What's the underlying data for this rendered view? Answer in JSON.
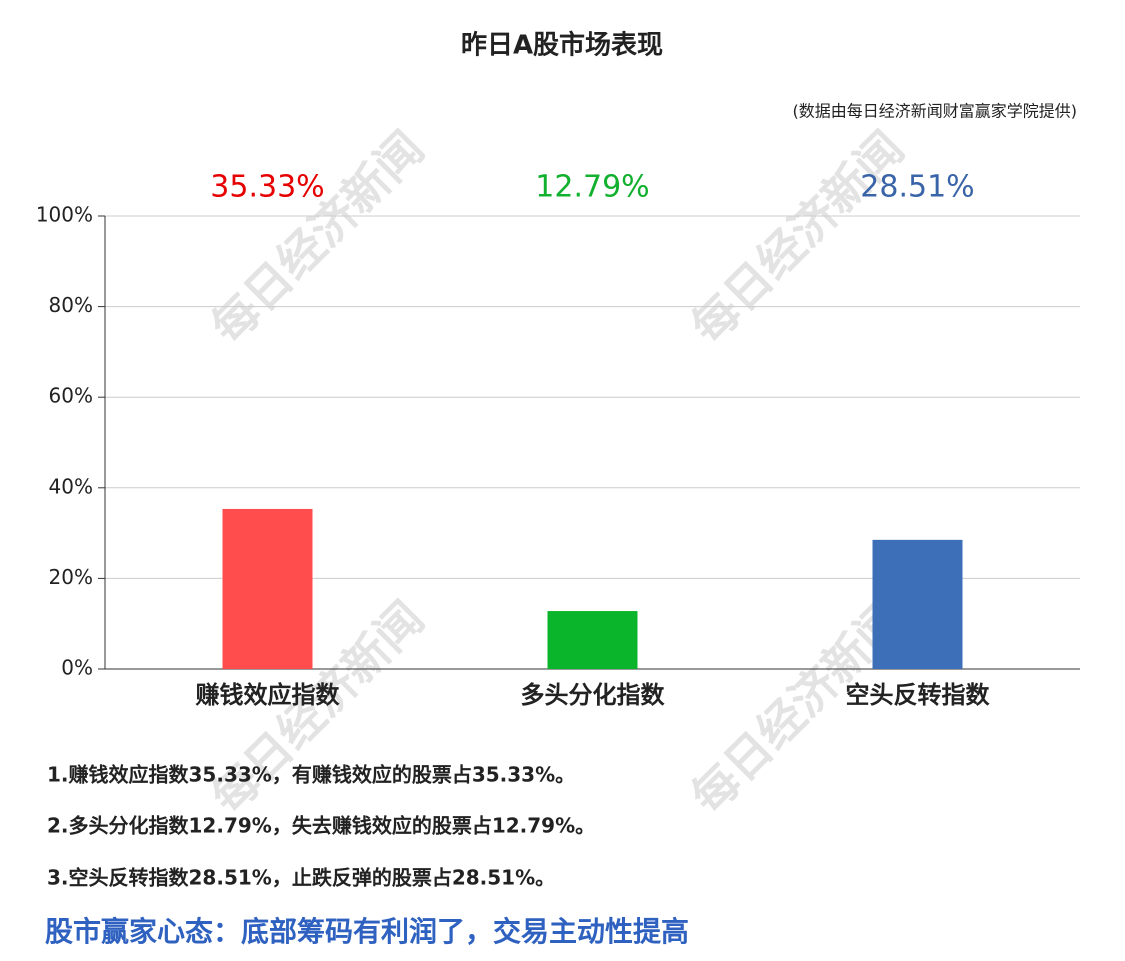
{
  "chart_data": {
    "type": "bar",
    "title": "昨日A股市场表现",
    "subtitle": "(数据由每日经济新闻财富赢家学院提供)",
    "categories": [
      "赚钱效应指数",
      "多头分化指数",
      "空头反转指数"
    ],
    "values": [
      35.33,
      12.79,
      28.51
    ],
    "value_labels": [
      "35.33%",
      "12.79%",
      "28.51%"
    ],
    "colors": [
      "#ff4c4c",
      "#0bb52b",
      "#3d6fb8"
    ],
    "label_colors": [
      "#e60000",
      "#11b02e",
      "#3a64a8"
    ],
    "ylim": [
      0,
      100
    ],
    "yticks": [
      {
        "value": 0,
        "label": "0%"
      },
      {
        "value": 20,
        "label": "20%"
      },
      {
        "value": 40,
        "label": "40%"
      },
      {
        "value": 60,
        "label": "60%"
      },
      {
        "value": 80,
        "label": "80%"
      },
      {
        "value": 100,
        "label": "100%"
      }
    ],
    "grid": true,
    "watermark": "每日经济新闻"
  },
  "notes": [
    "1.赚钱效应指数35.33%，有赚钱效应的股票占35.33%。",
    "2.多头分化指数12.79%，失去赚钱效应的股票占12.79%。",
    "3.空头反转指数28.51%，止跌反弹的股票占28.51%。"
  ],
  "conclusion": "股市赢家心态：底部筹码有利润了，交易主动性提高"
}
